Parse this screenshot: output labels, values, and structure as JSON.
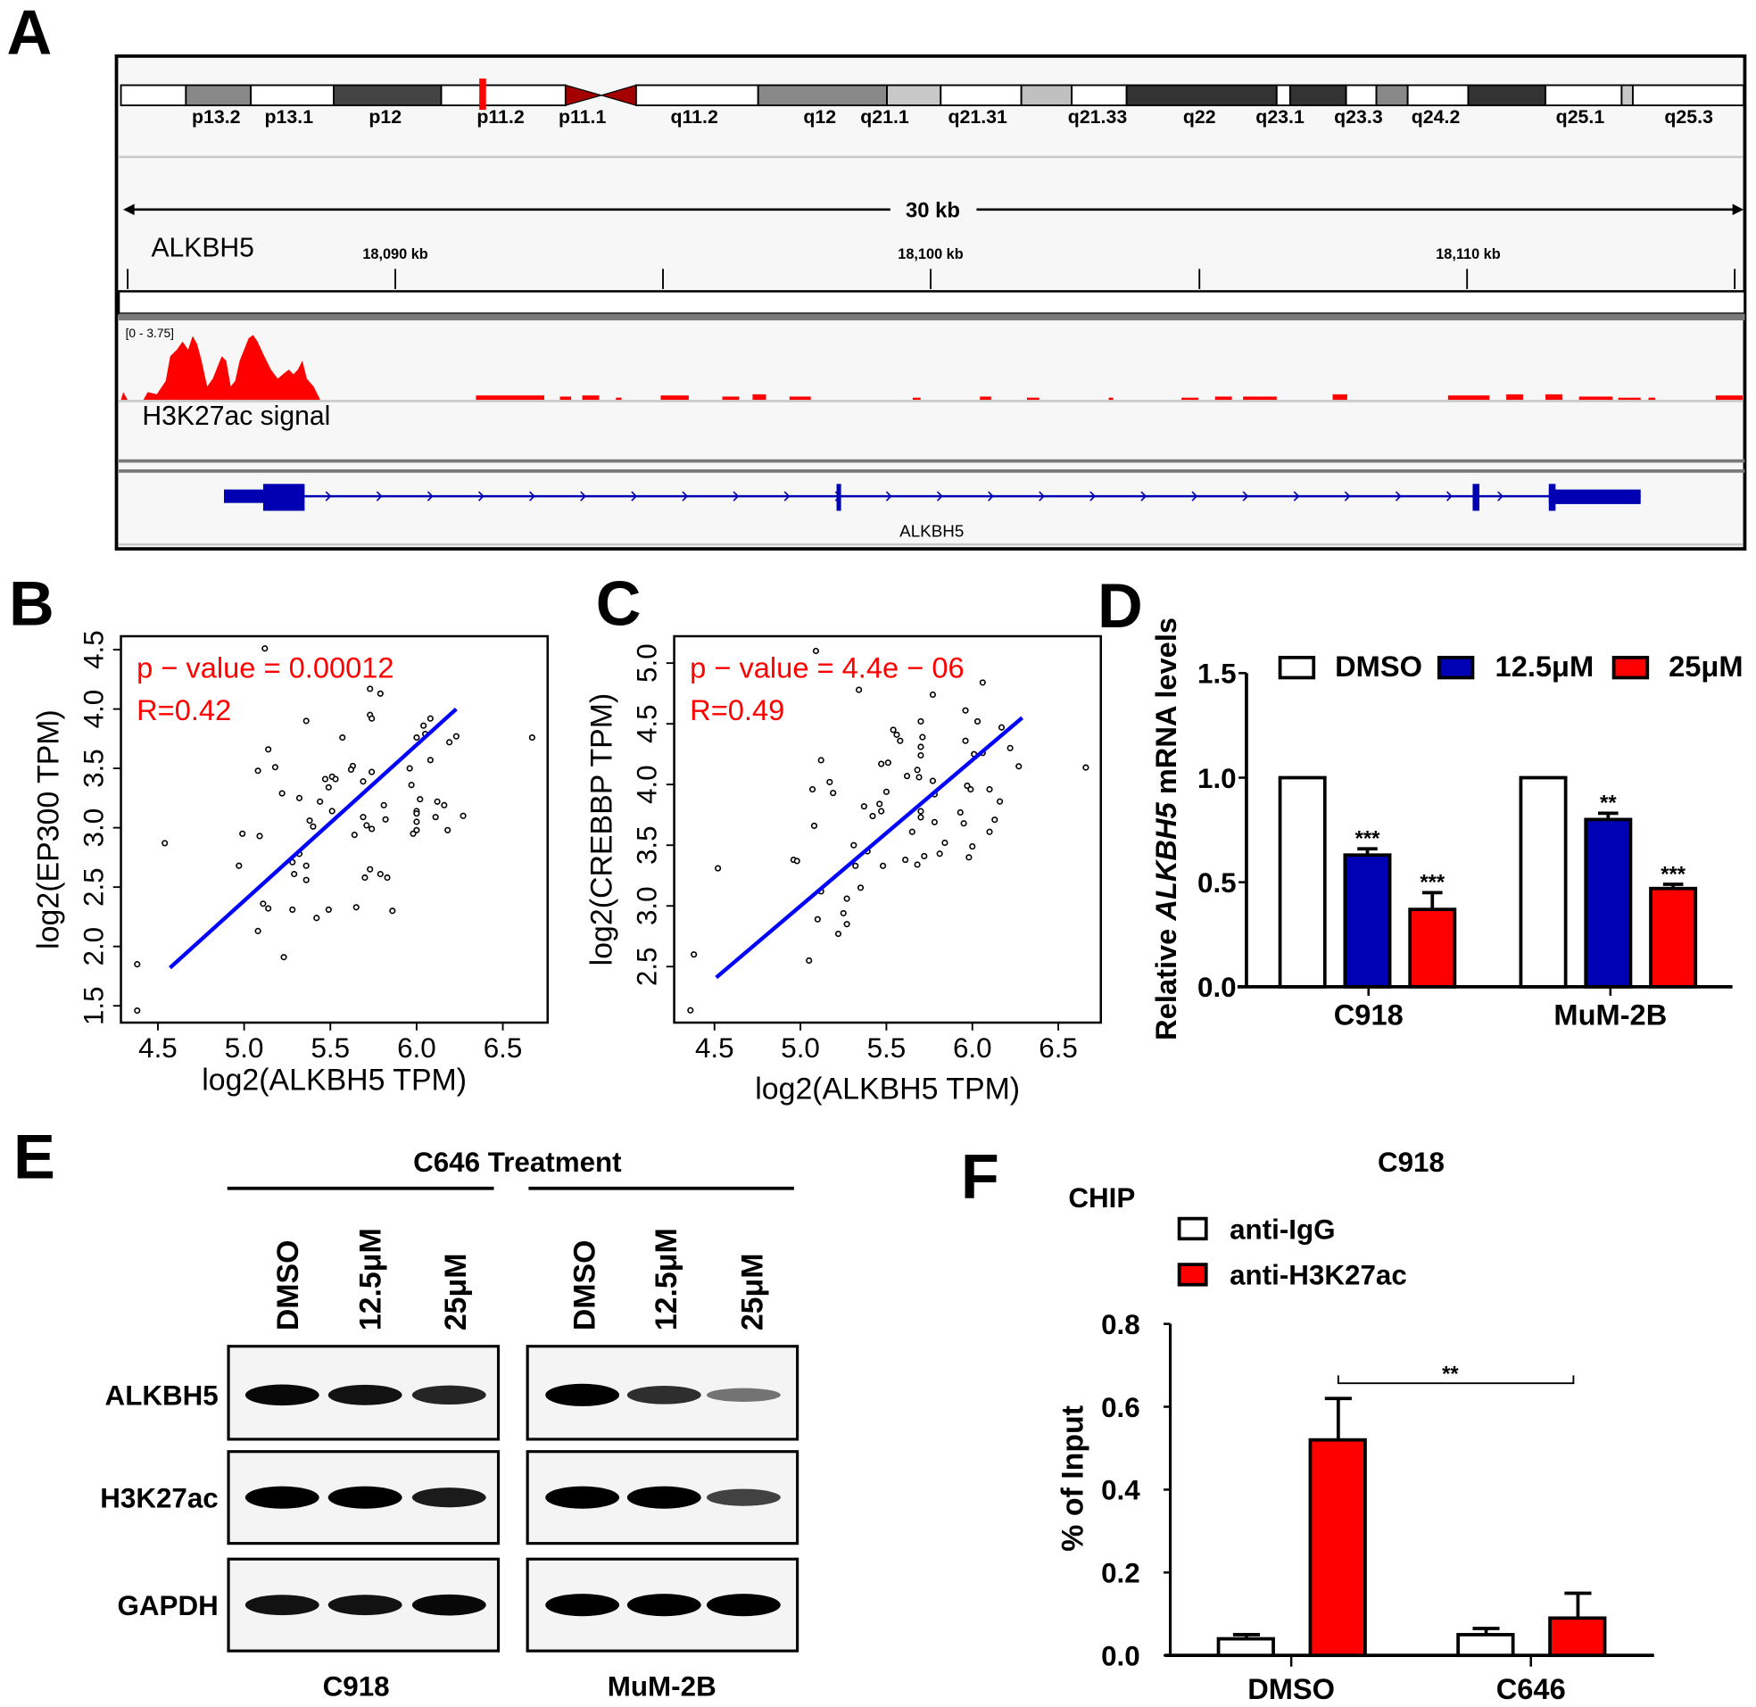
{
  "panel_letters": [
    "A",
    "B",
    "C",
    "D",
    "E",
    "F"
  ],
  "panel_a": {
    "band_labels": [
      "p13.2",
      "p13.1",
      "p12",
      "p11.2",
      "p11.1",
      "q11.2",
      "q12",
      "q21.1",
      "q21.31",
      "q21.33",
      "q22",
      "q23.1",
      "q23.3",
      "q24.2",
      "q25.1",
      "q25.3"
    ],
    "scale_label": "30 kb",
    "locus_label": "ALKBH5",
    "ruler_ticks": [
      "18,090 kb",
      "18,100 kb",
      "18,110 kb"
    ],
    "track_range": "[0 - 3.75]",
    "track_name": "H3K27ac signal",
    "gene_name": "ALKBH5",
    "signal_color": "#ff0000",
    "gene_color": "#0000b2"
  },
  "chart_data": [
    {
      "id": "B",
      "type": "scatter",
      "xlabel": "log2(ALKBH5 TPM)",
      "ylabel": "log2(EP300 TPM)",
      "xticks": [
        "4.5",
        "5.0",
        "5.5",
        "6.0",
        "6.5"
      ],
      "yticks": [
        "1.5",
        "2.0",
        "2.5",
        "3.0",
        "3.5",
        "4.0",
        "4.5"
      ],
      "annotation_p": "p − value = 0.00012",
      "annotation_r": "R=0.42",
      "fit_line": {
        "x": [
          4.57,
          6.23
        ],
        "y": [
          1.82,
          4.0
        ],
        "color": "#0000ff"
      },
      "points": [
        [
          5.12,
          4.51
        ],
        [
          5.73,
          4.17
        ],
        [
          5.79,
          4.13
        ],
        [
          5.36,
          3.9
        ],
        [
          5.73,
          3.95
        ],
        [
          5.74,
          3.92
        ],
        [
          6.08,
          3.92
        ],
        [
          6.04,
          3.86
        ],
        [
          5.57,
          3.76
        ],
        [
          6.05,
          3.79
        ],
        [
          6.23,
          3.77
        ],
        [
          6.67,
          3.76
        ],
        [
          6.0,
          3.76
        ],
        [
          6.19,
          3.72
        ],
        [
          5.14,
          3.66
        ],
        [
          6.08,
          3.57
        ],
        [
          5.08,
          3.48
        ],
        [
          5.18,
          3.51
        ],
        [
          5.63,
          3.52
        ],
        [
          5.62,
          3.49
        ],
        [
          5.74,
          3.47
        ],
        [
          5.96,
          3.5
        ],
        [
          5.51,
          3.43
        ],
        [
          5.47,
          3.41
        ],
        [
          5.53,
          3.41
        ],
        [
          5.69,
          3.39
        ],
        [
          5.49,
          3.34
        ],
        [
          5.97,
          3.36
        ],
        [
          5.22,
          3.29
        ],
        [
          5.32,
          3.25
        ],
        [
          5.44,
          3.22
        ],
        [
          6.02,
          3.24
        ],
        [
          6.12,
          3.22
        ],
        [
          6.16,
          3.19
        ],
        [
          5.81,
          3.19
        ],
        [
          5.51,
          3.14
        ],
        [
          5.69,
          3.09
        ],
        [
          6.0,
          3.14
        ],
        [
          6.0,
          3.12
        ],
        [
          5.82,
          3.07
        ],
        [
          6.11,
          3.09
        ],
        [
          6.27,
          3.1
        ],
        [
          5.38,
          3.06
        ],
        [
          5.4,
          3.01
        ],
        [
          5.71,
          3.02
        ],
        [
          5.74,
          2.99
        ],
        [
          6.0,
          3.05
        ],
        [
          6.0,
          2.98
        ],
        [
          5.98,
          2.95
        ],
        [
          6.18,
          2.98
        ],
        [
          5.64,
          2.94
        ],
        [
          4.99,
          2.95
        ],
        [
          5.09,
          2.93
        ],
        [
          4.54,
          2.87
        ],
        [
          5.32,
          2.78
        ],
        [
          5.28,
          2.71
        ],
        [
          5.36,
          2.68
        ],
        [
          4.97,
          2.68
        ],
        [
          5.29,
          2.61
        ],
        [
          5.36,
          2.56
        ],
        [
          5.73,
          2.65
        ],
        [
          5.7,
          2.58
        ],
        [
          5.79,
          2.61
        ],
        [
          5.83,
          2.58
        ],
        [
          5.11,
          2.36
        ],
        [
          5.14,
          2.32
        ],
        [
          5.28,
          2.31
        ],
        [
          5.49,
          2.31
        ],
        [
          5.65,
          2.33
        ],
        [
          5.86,
          2.3
        ],
        [
          5.42,
          2.24
        ],
        [
          5.08,
          2.13
        ],
        [
          5.23,
          1.91
        ],
        [
          4.38,
          1.85
        ],
        [
          4.38,
          1.46
        ]
      ]
    },
    {
      "id": "C",
      "type": "scatter",
      "xlabel": "log2(ALKBH5 TPM)",
      "ylabel": "log2(CREBBP TPM)",
      "xticks": [
        "4.5",
        "5.0",
        "5.5",
        "6.0",
        "6.5"
      ],
      "yticks": [
        "2.5",
        "3.0",
        "3.5",
        "4.0",
        "4.5",
        "5.0"
      ],
      "annotation_p": "p − value = 4.4e − 06",
      "annotation_r": "R=0.49",
      "fit_line": {
        "x": [
          4.51,
          6.29
        ],
        "y": [
          2.41,
          4.55
        ],
        "color": "#0000ff"
      },
      "points": [
        [
          5.09,
          5.1
        ],
        [
          6.06,
          4.84
        ],
        [
          5.34,
          4.78
        ],
        [
          5.77,
          4.74
        ],
        [
          5.96,
          4.61
        ],
        [
          5.7,
          4.52
        ],
        [
          6.03,
          4.52
        ],
        [
          6.17,
          4.47
        ],
        [
          5.54,
          4.45
        ],
        [
          5.56,
          4.41
        ],
        [
          5.58,
          4.36
        ],
        [
          5.71,
          4.39
        ],
        [
          5.96,
          4.36
        ],
        [
          5.7,
          4.31
        ],
        [
          6.22,
          4.3
        ],
        [
          6.01,
          4.25
        ],
        [
          6.06,
          4.26
        ],
        [
          5.7,
          4.24
        ],
        [
          5.12,
          4.2
        ],
        [
          5.47,
          4.17
        ],
        [
          5.51,
          4.18
        ],
        [
          6.27,
          4.15
        ],
        [
          6.66,
          4.14
        ],
        [
          5.68,
          4.12
        ],
        [
          5.62,
          4.07
        ],
        [
          5.69,
          4.06
        ],
        [
          5.77,
          4.03
        ],
        [
          5.17,
          4.02
        ],
        [
          5.07,
          3.96
        ],
        [
          5.5,
          3.94
        ],
        [
          5.19,
          3.93
        ],
        [
          5.97,
          3.99
        ],
        [
          5.99,
          3.96
        ],
        [
          6.1,
          3.96
        ],
        [
          5.78,
          3.92
        ],
        [
          6.16,
          3.86
        ],
        [
          5.37,
          3.82
        ],
        [
          5.46,
          3.84
        ],
        [
          5.47,
          3.78
        ],
        [
          5.7,
          3.78
        ],
        [
          5.93,
          3.77
        ],
        [
          5.42,
          3.74
        ],
        [
          5.7,
          3.73
        ],
        [
          5.78,
          3.69
        ],
        [
          5.95,
          3.68
        ],
        [
          6.13,
          3.71
        ],
        [
          5.08,
          3.66
        ],
        [
          5.65,
          3.61
        ],
        [
          6.1,
          3.61
        ],
        [
          5.31,
          3.5
        ],
        [
          5.84,
          3.52
        ],
        [
          6.0,
          3.49
        ],
        [
          5.39,
          3.45
        ],
        [
          5.81,
          3.43
        ],
        [
          5.72,
          3.41
        ],
        [
          5.61,
          3.38
        ],
        [
          5.98,
          3.4
        ],
        [
          4.96,
          3.38
        ],
        [
          4.98,
          3.37
        ],
        [
          5.32,
          3.33
        ],
        [
          5.48,
          3.33
        ],
        [
          5.68,
          3.34
        ],
        [
          4.52,
          3.31
        ],
        [
          5.35,
          3.15
        ],
        [
          5.12,
          3.12
        ],
        [
          5.27,
          3.06
        ],
        [
          5.25,
          2.94
        ],
        [
          5.1,
          2.89
        ],
        [
          5.27,
          2.85
        ],
        [
          5.22,
          2.77
        ],
        [
          5.05,
          2.55
        ],
        [
          4.38,
          2.6
        ],
        [
          4.36,
          2.14
        ]
      ]
    },
    {
      "id": "D",
      "type": "bar",
      "ylabel_pre": "Relative ",
      "ylabel_italic": "ALKBH5",
      "ylabel_post": " mRNA levels",
      "ylim": [
        0,
        1.5
      ],
      "yticks": [
        "0.0",
        "0.5",
        "1.0",
        "1.5"
      ],
      "categories": [
        "C918",
        "MuM-2B"
      ],
      "series": [
        {
          "name": "DMSO",
          "color": "#ffffff",
          "values": [
            1.0,
            1.0
          ],
          "errors": [
            0,
            0
          ],
          "sig": [
            "",
            ""
          ]
        },
        {
          "name": "12.5μM",
          "color": "#0000b4",
          "values": [
            0.63,
            0.8
          ],
          "errors": [
            0.03,
            0.03
          ],
          "sig": [
            "***",
            "**"
          ]
        },
        {
          "name": "25μM",
          "color": "#ff0000",
          "values": [
            0.37,
            0.47
          ],
          "errors": [
            0.08,
            0.02
          ],
          "sig": [
            "***",
            "***"
          ]
        }
      ]
    },
    {
      "id": "F",
      "type": "bar",
      "title": "C918",
      "subtitle": "CHIP",
      "ylabel": "% of Input",
      "ylim": [
        0,
        0.8
      ],
      "yticks": [
        "0.0",
        "0.2",
        "0.4",
        "0.6",
        "0.8"
      ],
      "categories": [
        "DMSO",
        "C646"
      ],
      "series": [
        {
          "name": "anti-IgG",
          "color": "#ffffff",
          "values": [
            0.04,
            0.05
          ],
          "errors": [
            0.01,
            0.015
          ]
        },
        {
          "name": "anti-H3K27ac",
          "color": "#ff0000",
          "values": [
            0.52,
            0.09
          ],
          "errors": [
            0.1,
            0.06
          ]
        }
      ],
      "comparison": {
        "label": "**"
      }
    }
  ],
  "panel_e": {
    "title": "C646 Treatment",
    "lanes": [
      "DMSO",
      "12.5μM",
      "25μM"
    ],
    "cell_lines": [
      "C918",
      "MuM-2B"
    ],
    "rows": [
      {
        "label": "ALKBH5",
        "intensity": [
          [
            0.9,
            0.85,
            0.75
          ],
          [
            1.0,
            0.7,
            0.35
          ]
        ]
      },
      {
        "label": "H3K27ac",
        "intensity": [
          [
            1.0,
            1.0,
            0.8
          ],
          [
            1.0,
            1.0,
            0.6
          ]
        ]
      },
      {
        "label": "GAPDH",
        "intensity": [
          [
            0.85,
            0.85,
            0.9
          ],
          [
            1.0,
            1.0,
            1.0
          ]
        ]
      }
    ]
  }
}
